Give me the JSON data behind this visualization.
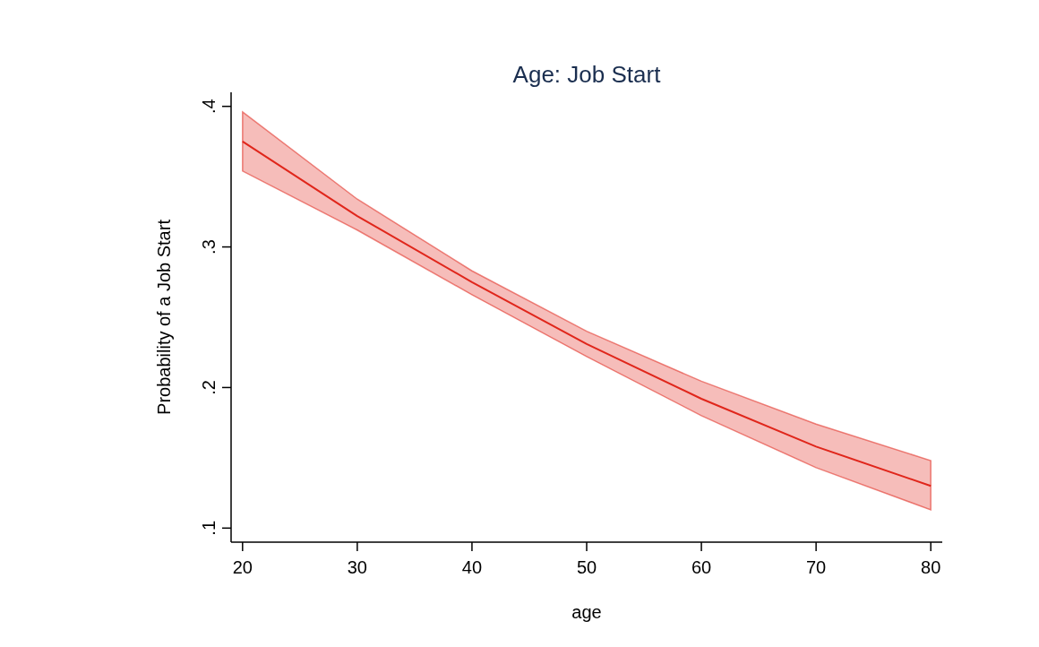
{
  "chart_data": {
    "type": "line",
    "title": "Age: Job Start",
    "xlabel": "age",
    "ylabel": "Probability of a Job Start",
    "x": [
      20,
      30,
      40,
      50,
      60,
      70,
      80
    ],
    "series": [
      {
        "color": "#e0261b",
        "values": [
          0.375,
          0.322,
          0.275,
          0.231,
          0.192,
          0.158,
          0.13
        ],
        "lower": [
          0.354,
          0.312,
          0.266,
          0.222,
          0.18,
          0.143,
          0.113
        ],
        "upper": [
          0.396,
          0.334,
          0.283,
          0.24,
          0.2045,
          0.174,
          0.148
        ]
      }
    ],
    "xlim": [
      19,
      81
    ],
    "xticks": [
      20,
      30,
      40,
      50,
      60,
      70,
      80
    ],
    "ylim": [
      0.09,
      0.41
    ],
    "yticks": [
      {
        "value": 0.1,
        "label": ".1"
      },
      {
        "value": 0.2,
        "label": ".2"
      },
      {
        "value": 0.3,
        "label": ".3"
      },
      {
        "value": 0.4,
        "label": ".4"
      }
    ],
    "grid": false,
    "marker": "none",
    "line_style": "solid"
  }
}
